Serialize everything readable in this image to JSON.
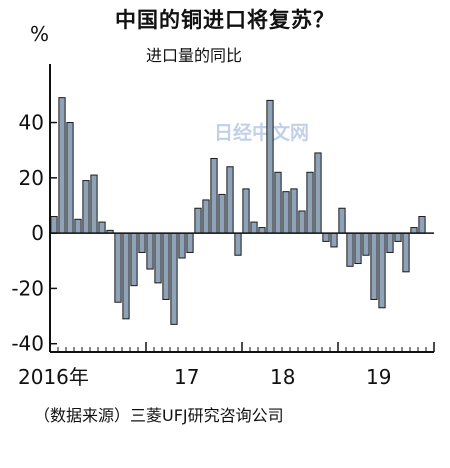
{
  "title": "中国的铜进口将复苏？",
  "subtitle": "进口量的同比",
  "unit": "%",
  "source": "（数据来源）三菱UFJ研究咨询公司",
  "watermark": "日经中文网",
  "chart_data": {
    "type": "bar",
    "title": "中国的铜进口将复苏？",
    "subtitle": "进口量的同比",
    "ylabel": "%",
    "ylim": [
      -43,
      59
    ],
    "yticks": [
      40,
      20,
      0,
      -20,
      -40
    ],
    "bar_color": "#8fa3b8",
    "x_labels": [
      {
        "label": "2016年",
        "index": 0
      },
      {
        "label": "17",
        "index": 12
      },
      {
        "label": "18",
        "index": 24
      },
      {
        "label": "19",
        "index": 36
      }
    ],
    "categories": [
      "2016-01",
      "2016-02",
      "2016-03",
      "2016-04",
      "2016-05",
      "2016-06",
      "2016-07",
      "2016-08",
      "2016-09",
      "2016-10",
      "2016-11",
      "2016-12",
      "2017-01",
      "2017-02",
      "2017-03",
      "2017-04",
      "2017-05",
      "2017-06",
      "2017-07",
      "2017-08",
      "2017-09",
      "2017-10",
      "2017-11",
      "2017-12",
      "2018-01",
      "2018-02",
      "2018-03",
      "2018-04",
      "2018-05",
      "2018-06",
      "2018-07",
      "2018-08",
      "2018-09",
      "2018-10",
      "2018-11",
      "2018-12",
      "2019-01",
      "2019-02",
      "2019-03",
      "2019-04",
      "2019-05",
      "2019-06",
      "2019-07",
      "2019-08",
      "2019-09",
      "2019-10",
      "2019-11",
      "2019-12"
    ],
    "values": [
      6,
      49,
      40,
      5,
      19,
      21,
      4,
      1,
      -25,
      -31,
      -19,
      -7,
      -13,
      -18,
      -24,
      -33,
      -9,
      -7,
      9,
      12,
      27,
      14,
      24,
      -8,
      16,
      4,
      2,
      48,
      22,
      15,
      16,
      8,
      22,
      29,
      -3,
      -5,
      9,
      -12,
      -11,
      -8,
      -24,
      -27,
      -7,
      -3,
      -14,
      2,
      6,
      0
    ]
  }
}
